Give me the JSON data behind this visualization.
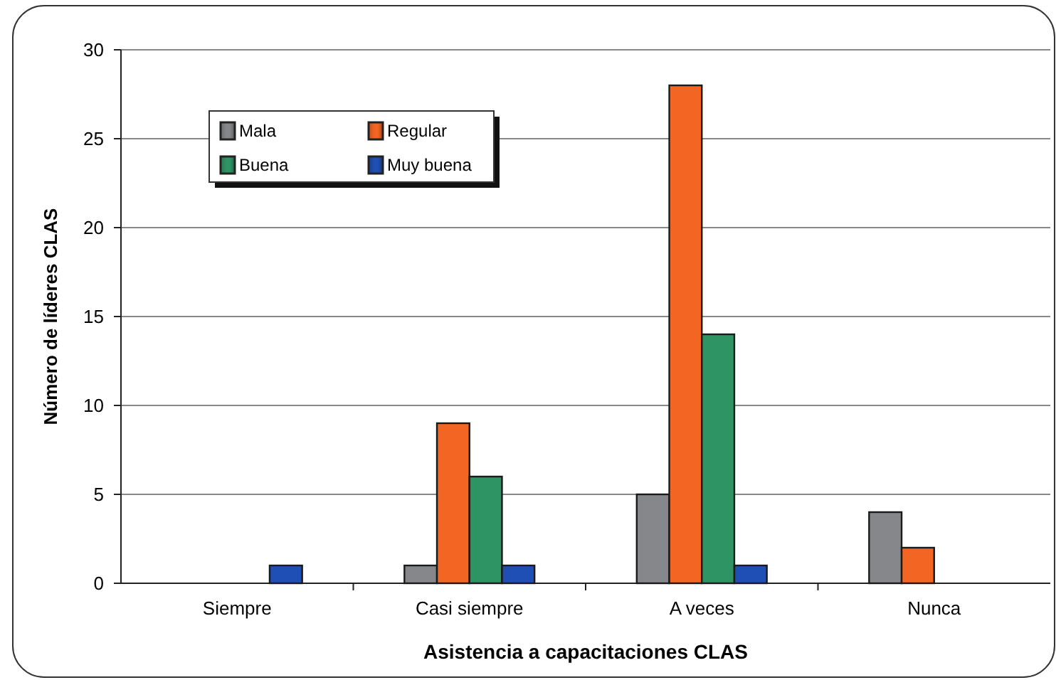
{
  "chart_data": {
    "type": "bar",
    "xlabel": "Asistencia a capacitaciones CLAS",
    "ylabel": "Número de líderes CLAS",
    "categories": [
      "Siempre",
      "Casi siempre",
      "A veces",
      "Nunca"
    ],
    "series": [
      {
        "name": "Mala",
        "color": "#86878b",
        "values": [
          null,
          1,
          5,
          4
        ]
      },
      {
        "name": "Regular",
        "color": "#f26522",
        "values": [
          null,
          9,
          28,
          2
        ]
      },
      {
        "name": "Buena",
        "color": "#2e9464",
        "values": [
          null,
          6,
          14,
          null
        ]
      },
      {
        "name": "Muy buena",
        "color": "#1f4fb4",
        "values": [
          1,
          1,
          1,
          null
        ]
      }
    ],
    "ylim": [
      0,
      30
    ],
    "yticks": [
      0,
      5,
      10,
      15,
      20,
      25,
      30
    ],
    "grid": "y",
    "legend": "top left"
  }
}
